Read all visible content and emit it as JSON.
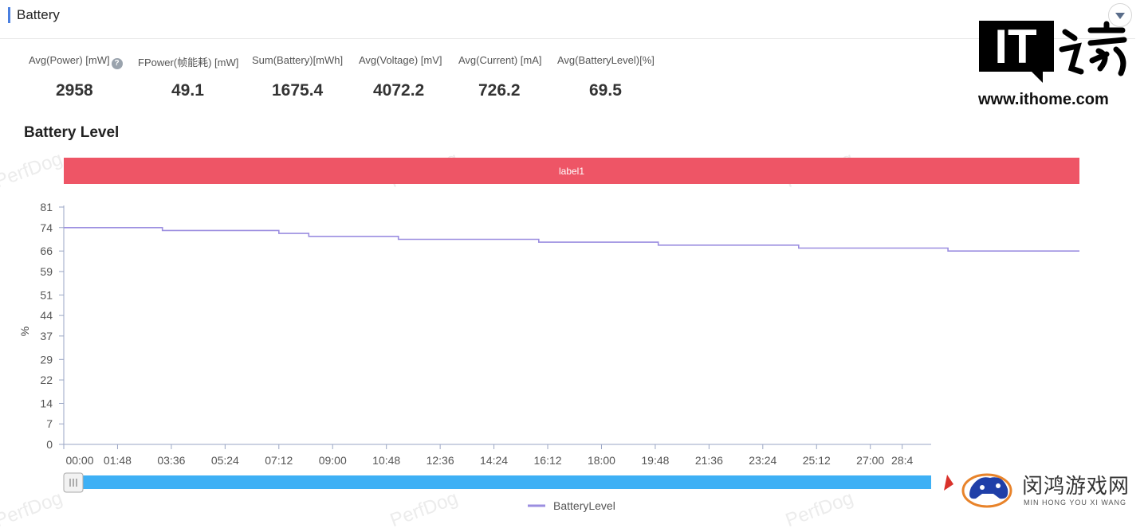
{
  "header": {
    "title": "Battery",
    "collapse_icon": "chevron-down-icon"
  },
  "stats": [
    {
      "label": "Avg(Power) [mW]",
      "value": "2958",
      "help": true
    },
    {
      "label": "FPower(帧能耗) [mW]",
      "value": "49.1"
    },
    {
      "label": "Sum(Battery)[mWh]",
      "value": "1675.4"
    },
    {
      "label": "Avg(Voltage) [mV]",
      "value": "4072.2"
    },
    {
      "label": "Avg(Current) [mA]",
      "value": "726.2"
    },
    {
      "label": "Avg(BatteryLevel)[%]",
      "value": "69.5"
    }
  ],
  "help_icon": "?",
  "chart_title": "Battery Level",
  "label_band": "label1",
  "watermark": "PerfDog",
  "chart_data": {
    "type": "line",
    "step": true,
    "ylabel": "%",
    "ylim": [
      0,
      81
    ],
    "yticks": [
      "0",
      "7",
      "14",
      "22",
      "29",
      "37",
      "44",
      "51",
      "59",
      "66",
      "74",
      "81"
    ],
    "xticks": [
      "00:00",
      "01:48",
      "03:36",
      "05:24",
      "07:12",
      "09:00",
      "10:48",
      "12:36",
      "14:24",
      "16:12",
      "18:00",
      "19:48",
      "21:36",
      "23:24",
      "25:12",
      "27:00",
      "28:4"
    ],
    "xlim": [
      "00:00",
      "34:00"
    ],
    "series": [
      {
        "name": "BatteryLevel",
        "color": "#9b8ee0",
        "points": [
          [
            "00:00",
            74
          ],
          [
            "03:18",
            74
          ],
          [
            "03:18",
            73
          ],
          [
            "07:12",
            73
          ],
          [
            "07:12",
            72
          ],
          [
            "08:12",
            72
          ],
          [
            "08:12",
            71
          ],
          [
            "11:12",
            71
          ],
          [
            "11:12",
            70
          ],
          [
            "15:54",
            70
          ],
          [
            "15:54",
            69
          ],
          [
            "19:54",
            69
          ],
          [
            "19:54",
            68
          ],
          [
            "24:36",
            68
          ],
          [
            "24:36",
            67
          ],
          [
            "29:36",
            67
          ],
          [
            "29:36",
            66
          ],
          [
            "34:00",
            66
          ]
        ]
      }
    ],
    "grid": false,
    "legend": "bottom-center",
    "band_color": "#ee5566",
    "slider_color": "#3eb0f5"
  },
  "logos": {
    "ithome_text": "IT",
    "ithome_url": "www.ithome.com",
    "game_cn": "闵鸿游戏网",
    "game_en": "MIN HONG YOU XI WANG"
  }
}
